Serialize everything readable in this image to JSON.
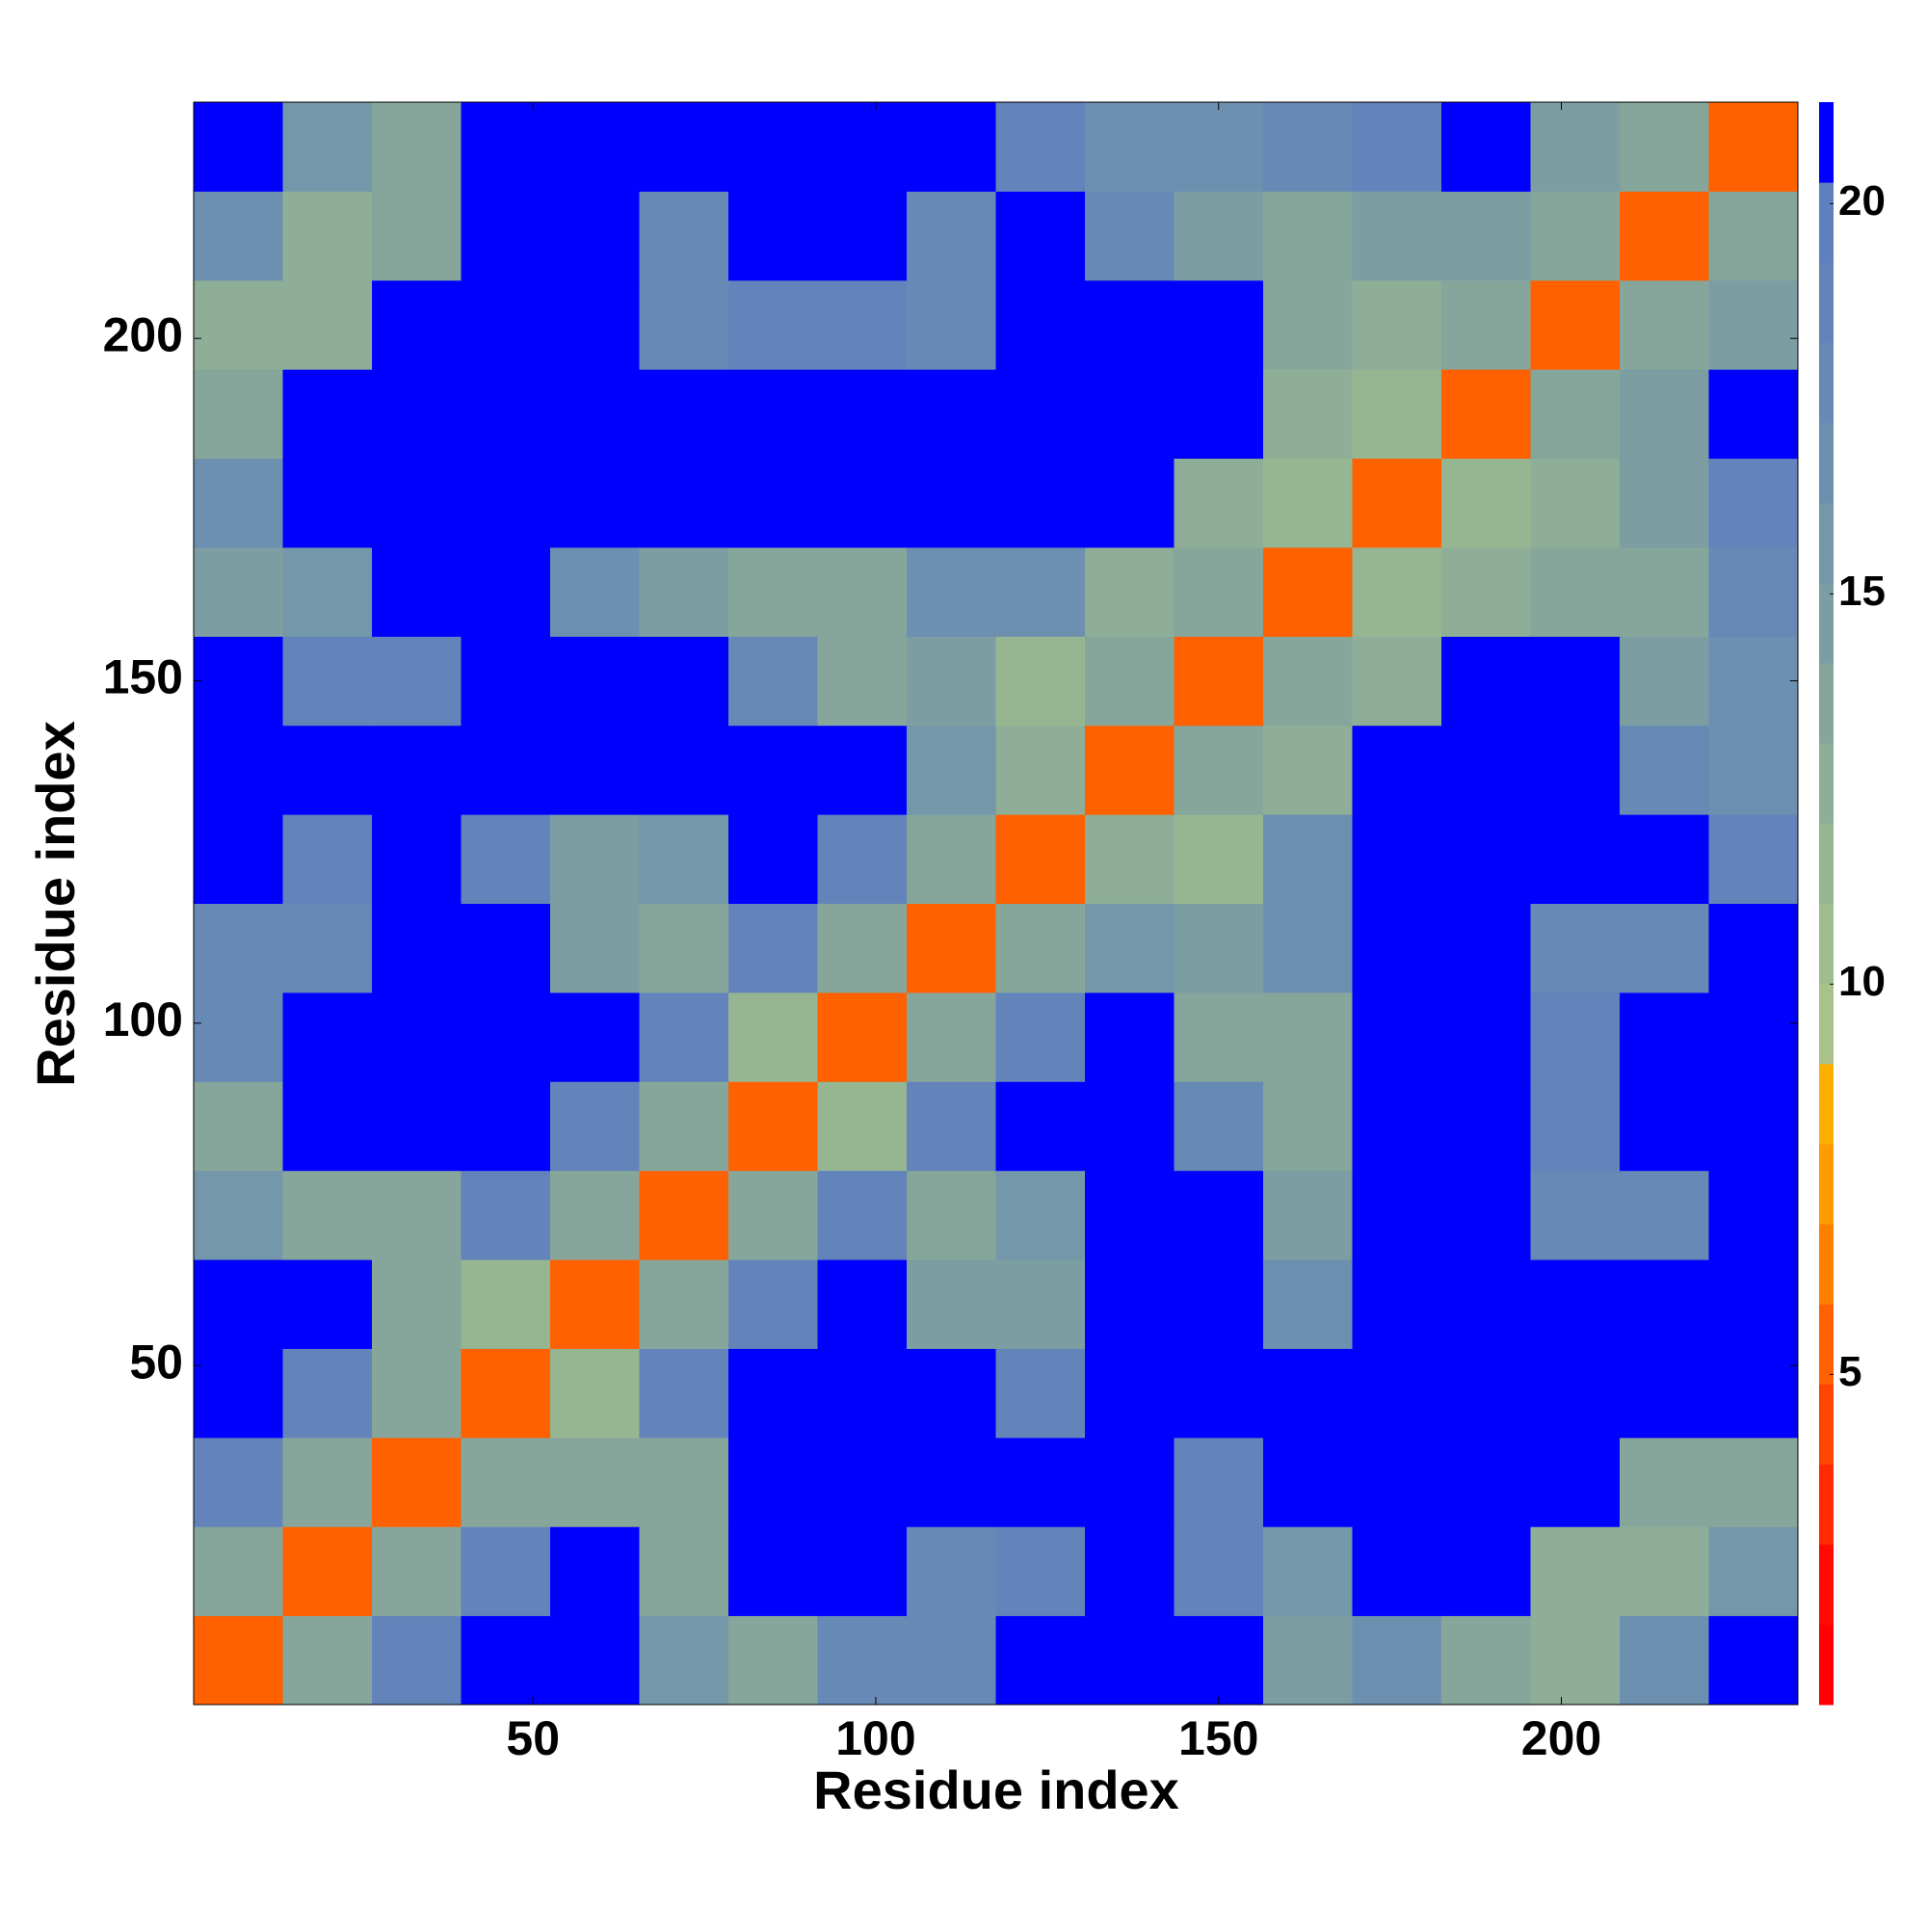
{
  "chart_data": {
    "type": "heatmap",
    "xlabel": "Residue index",
    "ylabel": "Residue index",
    "x": [
      7,
      20,
      33,
      46,
      59,
      72,
      85,
      98,
      111,
      124,
      137,
      150,
      163,
      176,
      189,
      202,
      215,
      228
    ],
    "y": [
      7,
      20,
      33,
      46,
      59,
      72,
      85,
      98,
      111,
      124,
      137,
      150,
      163,
      176,
      189,
      202,
      215,
      228
    ],
    "values": [
      [
        5,
        14,
        19,
        21,
        21,
        16,
        14,
        18,
        18,
        21,
        21,
        21,
        15,
        17,
        14,
        13,
        17,
        21
      ],
      [
        14,
        5,
        14,
        19,
        21,
        14,
        21,
        21,
        18,
        19,
        21,
        19,
        16,
        21,
        21,
        13,
        13,
        16
      ],
      [
        19,
        14,
        5,
        14,
        14,
        14,
        21,
        21,
        21,
        21,
        21,
        19,
        21,
        21,
        21,
        21,
        14,
        14
      ],
      [
        21,
        19,
        14,
        5,
        12,
        19,
        21,
        21,
        21,
        19,
        21,
        21,
        21,
        21,
        21,
        21,
        21,
        21
      ],
      [
        21,
        21,
        14,
        12,
        5,
        14,
        19,
        21,
        15,
        15,
        21,
        21,
        17,
        21,
        21,
        21,
        21,
        21
      ],
      [
        16,
        14,
        14,
        19,
        14,
        5,
        14,
        19,
        14,
        16,
        21,
        21,
        15,
        21,
        21,
        18,
        18,
        21
      ],
      [
        14,
        21,
        21,
        21,
        19,
        14,
        5,
        12,
        19,
        21,
        21,
        18,
        14,
        21,
        21,
        19,
        21,
        21
      ],
      [
        18,
        21,
        21,
        21,
        21,
        19,
        12,
        5,
        14,
        19,
        21,
        14,
        14,
        21,
        21,
        19,
        21,
        21
      ],
      [
        18,
        18,
        21,
        21,
        15,
        14,
        19,
        14,
        5,
        14,
        16,
        15,
        17,
        21,
        21,
        18,
        18,
        21
      ],
      [
        21,
        19,
        21,
        19,
        15,
        16,
        21,
        19,
        14,
        5,
        13,
        12,
        17,
        21,
        21,
        21,
        21,
        19
      ],
      [
        21,
        21,
        21,
        21,
        21,
        21,
        21,
        21,
        16,
        13,
        5,
        14,
        13,
        21,
        21,
        21,
        18,
        17
      ],
      [
        21,
        19,
        19,
        21,
        21,
        21,
        18,
        14,
        15,
        12,
        14,
        5,
        14,
        13,
        21,
        21,
        15,
        17
      ],
      [
        15,
        16,
        21,
        21,
        17,
        15,
        14,
        14,
        17,
        17,
        13,
        14,
        5,
        12,
        13,
        14,
        14,
        18
      ],
      [
        17,
        21,
        21,
        21,
        21,
        21,
        21,
        21,
        21,
        21,
        21,
        13,
        12,
        5,
        12,
        13,
        15,
        19
      ],
      [
        14,
        21,
        21,
        21,
        21,
        21,
        21,
        21,
        21,
        21,
        21,
        21,
        13,
        12,
        5,
        14,
        15,
        21
      ],
      [
        13,
        13,
        21,
        21,
        21,
        18,
        19,
        19,
        18,
        21,
        21,
        21,
        14,
        13,
        14,
        5,
        14,
        15
      ],
      [
        17,
        13,
        14,
        21,
        21,
        18,
        21,
        21,
        18,
        21,
        18,
        15,
        14,
        15,
        15,
        14,
        5,
        14
      ],
      [
        21,
        16,
        14,
        21,
        21,
        21,
        21,
        21,
        21,
        19,
        17,
        17,
        18,
        19,
        21,
        15,
        14,
        5
      ]
    ],
    "xlim": [
      0.5,
      234.5
    ],
    "ylim": [
      0.5,
      234.5
    ],
    "xticks": [
      50,
      100,
      150,
      200
    ],
    "yticks": [
      50,
      100,
      150,
      200
    ],
    "clim": [
      0.77,
      21.3
    ],
    "cticks": [
      5,
      10,
      15,
      20
    ],
    "colorscale": [
      "#ff0000",
      "#ff0a00",
      "#ff2a00",
      "#ff4500",
      "#ff6000",
      "#ff8000",
      "#ff9a00",
      "#ffaf00",
      "#a8c28a",
      "#9fbd8e",
      "#96b692",
      "#8eae97",
      "#86a69c",
      "#7c9ea3",
      "#7497aa",
      "#6d90b0",
      "#6689b5",
      "#6284ba",
      "#5f80be",
      "#0000ff"
    ]
  }
}
